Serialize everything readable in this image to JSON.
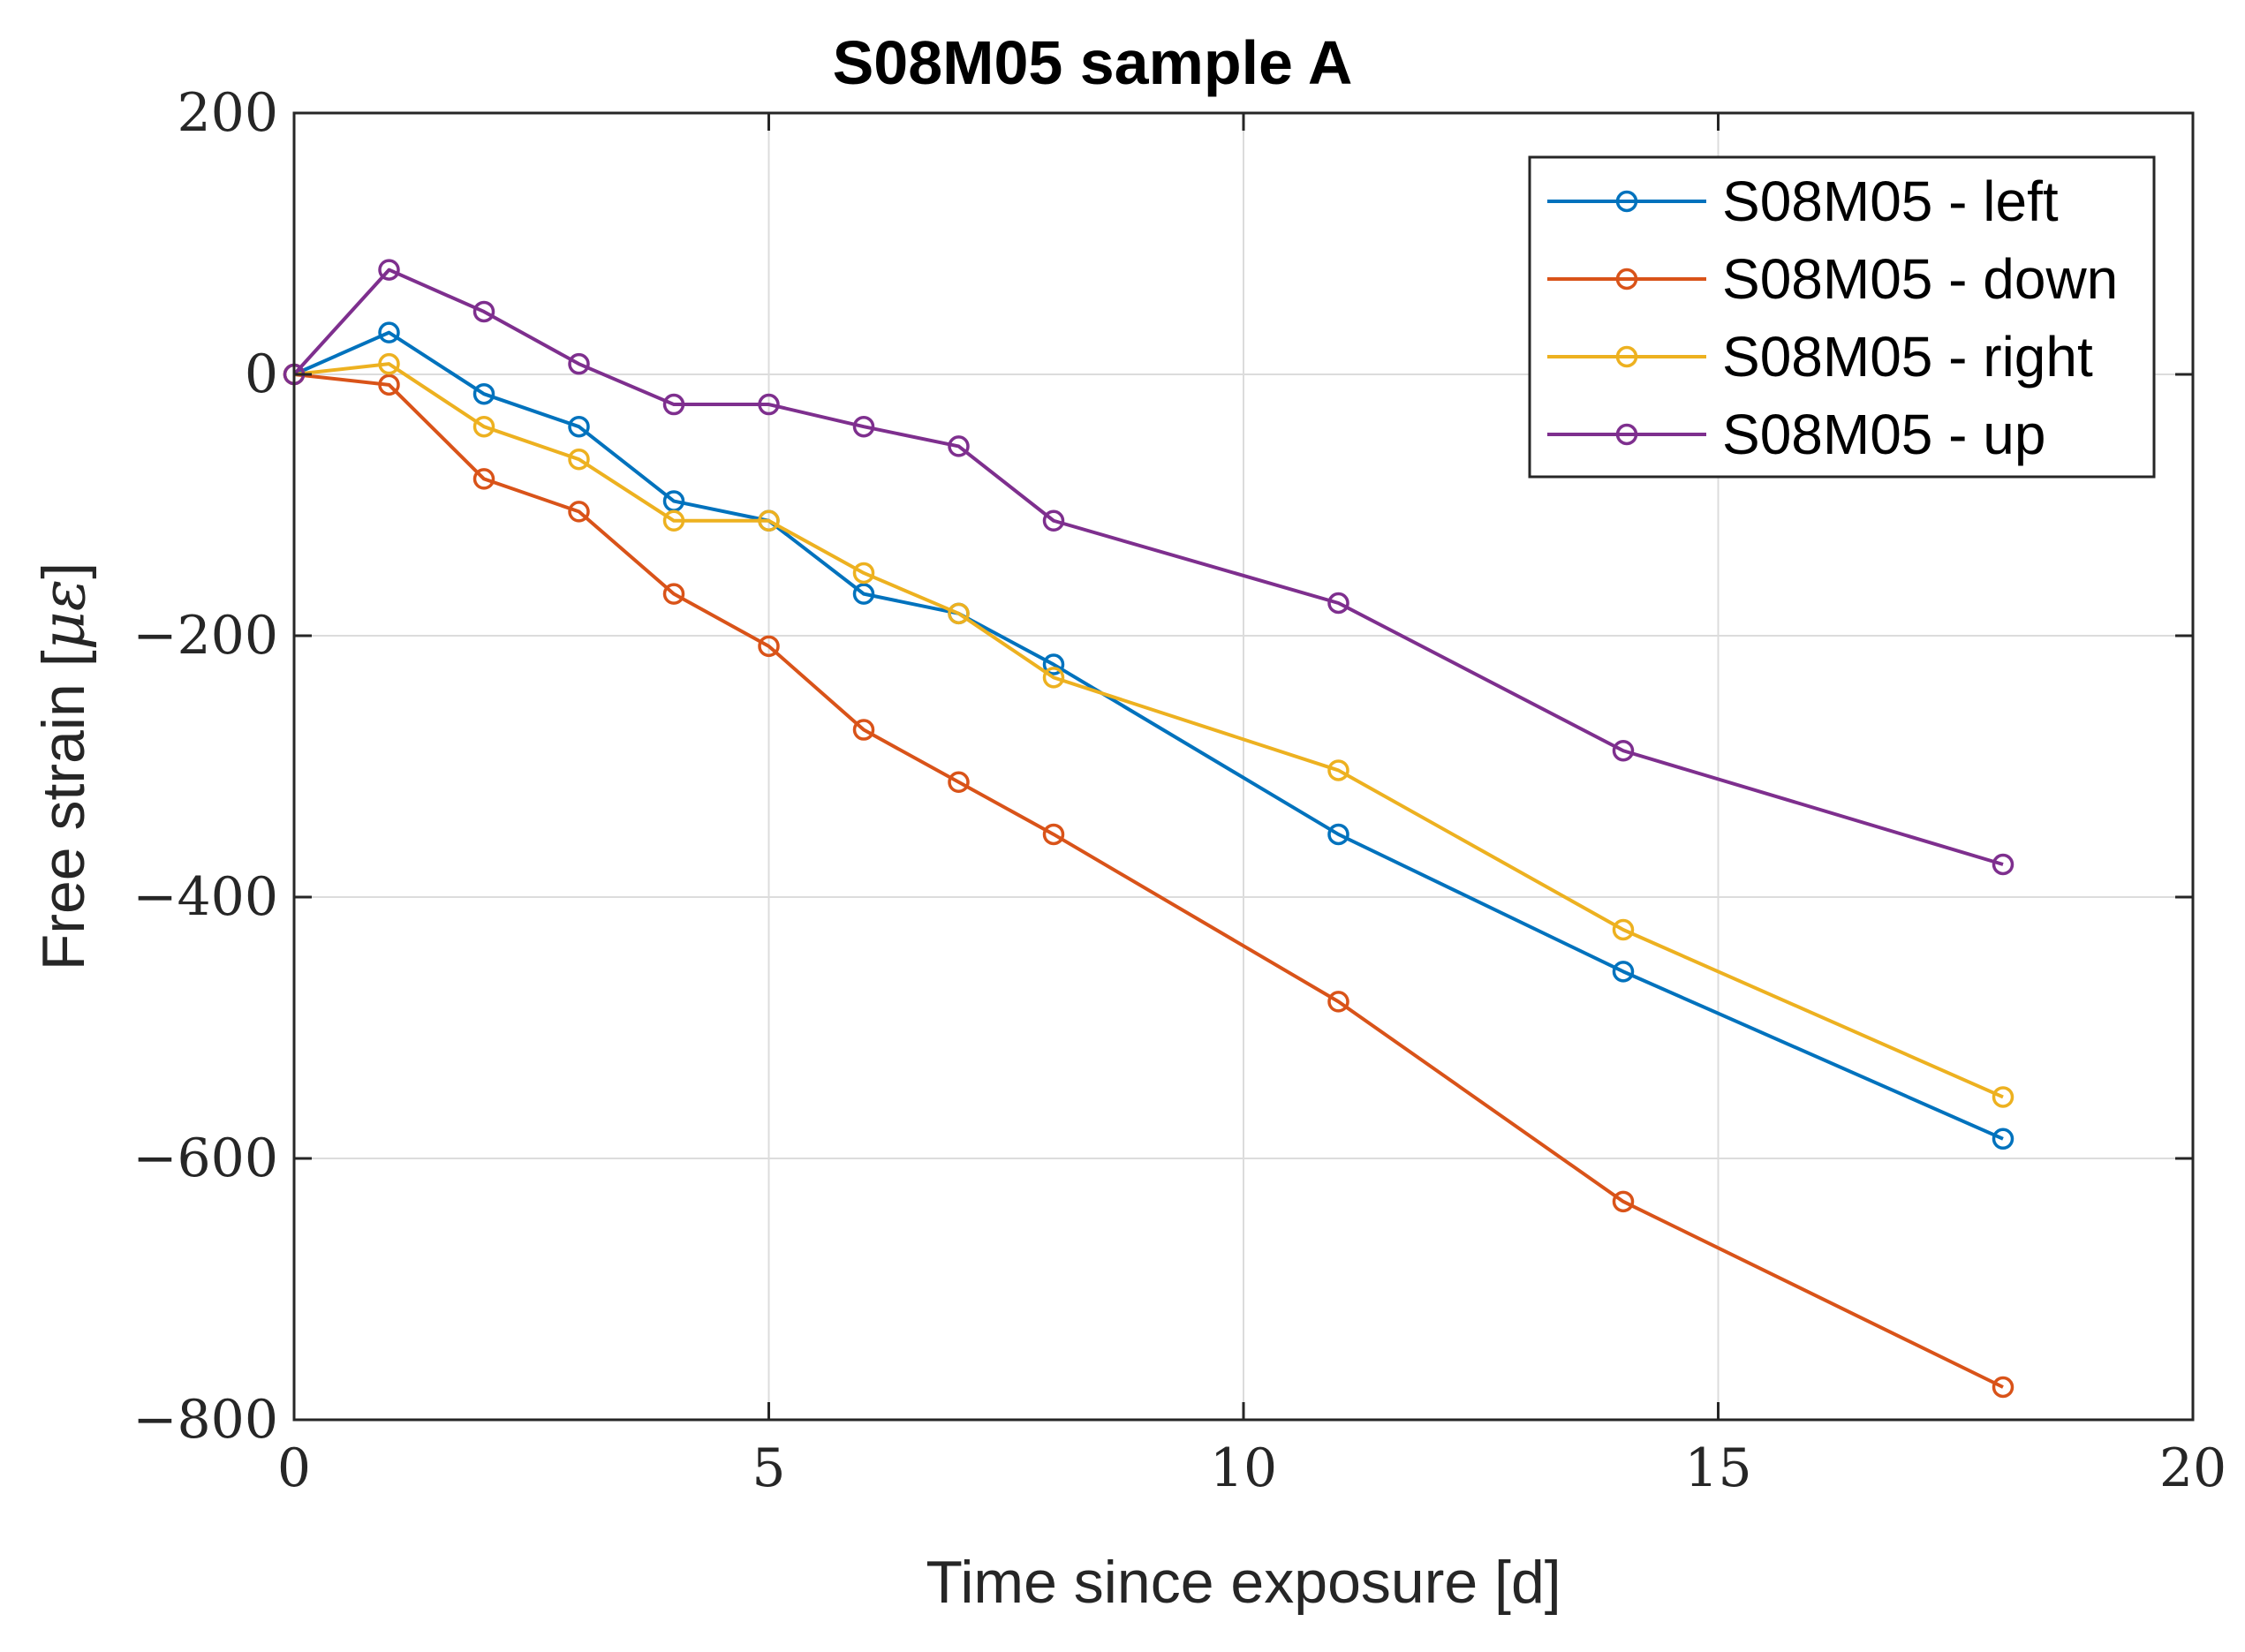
{
  "chart_data": {
    "type": "line",
    "title": "S08M05 sample A",
    "xlabel": "Time since exposure [d]",
    "ylabel": "Free strain [",
    "ylabel_unit": "με",
    "ylabel_close": "]",
    "xlim": [
      0,
      20
    ],
    "ylim": [
      -800,
      200
    ],
    "xticks": [
      0,
      5,
      10,
      15,
      20
    ],
    "yticks": [
      -800,
      -600,
      -400,
      -200,
      0,
      200
    ],
    "xtick_labels": [
      "0",
      "5",
      "10",
      "15",
      "20"
    ],
    "ytick_labels": [
      "−800",
      "−600",
      "−400",
      "−200",
      "0",
      "200"
    ],
    "grid": true,
    "legend_position": "top-right",
    "marker": "circle",
    "x": [
      0,
      1,
      2,
      3,
      4,
      5,
      6,
      7,
      8,
      11,
      14,
      18
    ],
    "series": [
      {
        "name": "S08M05 - left",
        "color": "#0072BD",
        "values": [
          0,
          32,
          -15,
          -40,
          -97,
          -112,
          -168,
          -183,
          -222,
          -352,
          -457,
          -585
        ]
      },
      {
        "name": "S08M05 - down",
        "color": "#D95319",
        "values": [
          0,
          -8,
          -80,
          -105,
          -168,
          -208,
          -272,
          -312,
          -352,
          -480,
          -633,
          -775
        ]
      },
      {
        "name": "S08M05 - right",
        "color": "#EDB120",
        "values": [
          0,
          8,
          -40,
          -65,
          -112,
          -112,
          -152,
          -183,
          -232,
          -303,
          -425,
          -553
        ]
      },
      {
        "name": "S08M05 - up",
        "color": "#7E2F8E",
        "values": [
          0,
          80,
          48,
          8,
          -23,
          -23,
          -40,
          -55,
          -112,
          -175,
          -288,
          -375
        ]
      }
    ]
  }
}
